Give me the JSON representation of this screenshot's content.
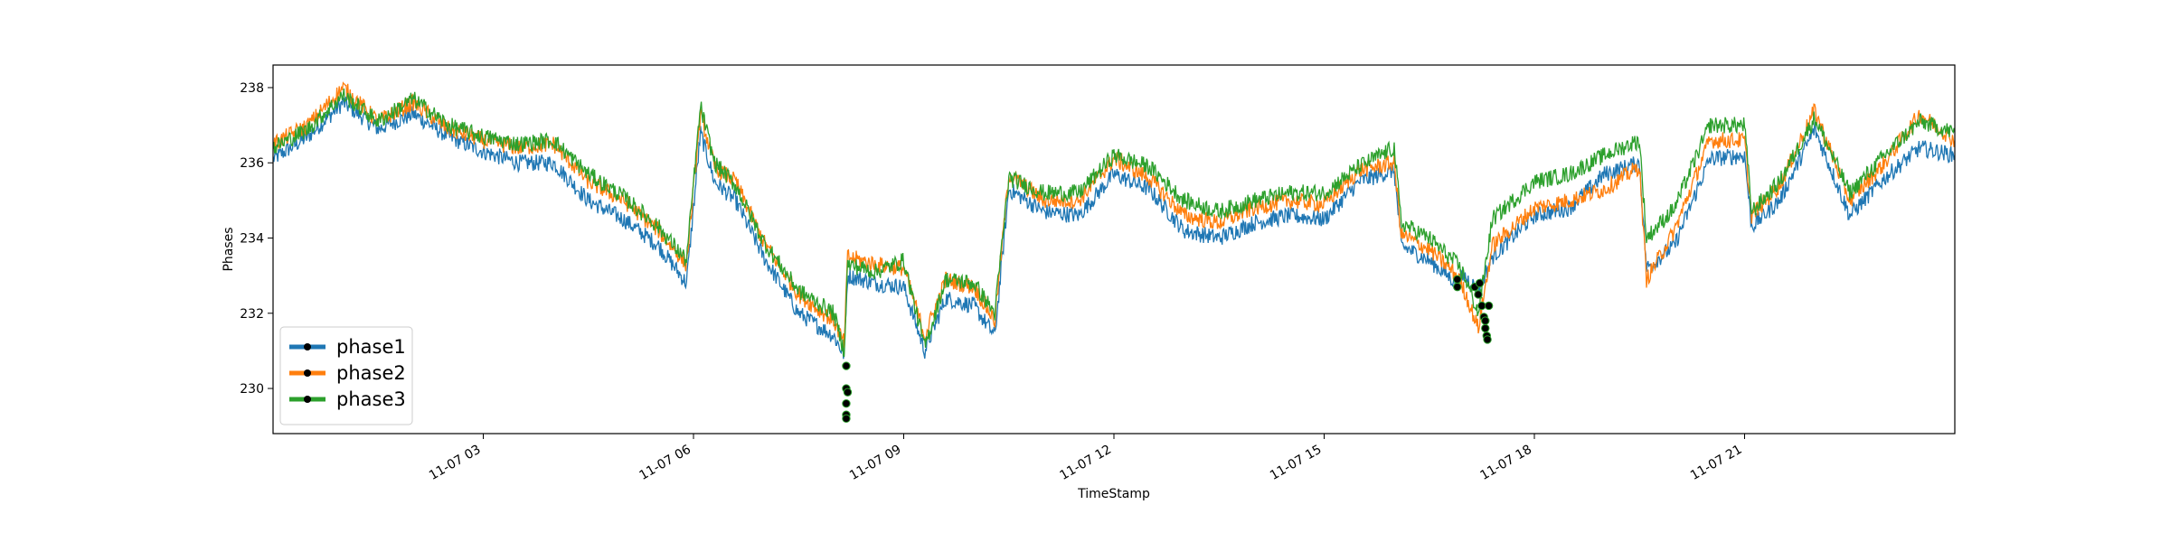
{
  "chart_data": {
    "type": "line",
    "title": "",
    "xlabel": "TimeStamp",
    "ylabel": "Phases",
    "x_unit": "hour of 11-07",
    "xlim": [
      0,
      24
    ],
    "ylim": [
      228.8,
      238.6
    ],
    "x_ticks": [
      {
        "x": 3,
        "label": "11-07 03"
      },
      {
        "x": 6,
        "label": "11-07 06"
      },
      {
        "x": 9,
        "label": "11-07 09"
      },
      {
        "x": 12,
        "label": "11-07 12"
      },
      {
        "x": 15,
        "label": "11-07 15"
      },
      {
        "x": 18,
        "label": "11-07 18"
      },
      {
        "x": 21,
        "label": "11-07 21"
      }
    ],
    "y_ticks": [
      {
        "y": 230,
        "label": "230"
      },
      {
        "y": 232,
        "label": "232"
      },
      {
        "y": 234,
        "label": "234"
      },
      {
        "y": 236,
        "label": "236"
      },
      {
        "y": 238,
        "label": "238"
      }
    ],
    "grid": false,
    "legend_position": "lower-left",
    "series": [
      {
        "name": "phase1",
        "color": "#1f77b4",
        "x": [
          0.0,
          0.5,
          1.0,
          1.5,
          2.0,
          2.5,
          3.0,
          3.5,
          4.0,
          4.5,
          5.0,
          5.5,
          5.9,
          6.1,
          6.3,
          6.6,
          7.0,
          7.5,
          8.0,
          8.15,
          8.2,
          8.6,
          9.0,
          9.3,
          9.6,
          10.0,
          10.3,
          10.5,
          11.0,
          11.5,
          12.0,
          12.5,
          13.0,
          13.5,
          14.0,
          14.5,
          15.0,
          15.5,
          16.0,
          16.1,
          16.5,
          16.9,
          17.0,
          17.2,
          17.4,
          18.0,
          18.5,
          19.0,
          19.5,
          19.6,
          20.0,
          20.5,
          21.0,
          21.1,
          21.5,
          22.0,
          22.5,
          23.0,
          23.5,
          24.0
        ],
        "y": [
          236.1,
          236.7,
          237.6,
          236.9,
          237.3,
          236.7,
          236.3,
          236.0,
          236.0,
          235.0,
          234.5,
          233.8,
          232.8,
          236.8,
          235.5,
          235.0,
          233.5,
          232.0,
          231.4,
          230.9,
          233.0,
          232.8,
          232.7,
          231.0,
          232.4,
          232.2,
          231.4,
          235.3,
          234.7,
          234.6,
          235.7,
          235.3,
          234.2,
          234.0,
          234.4,
          234.6,
          234.5,
          235.5,
          235.8,
          233.8,
          233.4,
          232.8,
          233.0,
          232.6,
          233.5,
          234.6,
          234.8,
          235.7,
          236.0,
          233.2,
          233.8,
          236.1,
          236.2,
          234.3,
          235.0,
          236.9,
          234.6,
          235.6,
          236.4,
          236.2
        ]
      },
      {
        "name": "phase2",
        "color": "#ff7f0e",
        "x": [
          0.0,
          0.5,
          1.0,
          1.5,
          2.0,
          2.5,
          3.0,
          3.5,
          4.0,
          4.5,
          5.0,
          5.5,
          5.9,
          6.1,
          6.3,
          6.6,
          7.0,
          7.5,
          8.0,
          8.15,
          8.2,
          8.6,
          9.0,
          9.3,
          9.6,
          10.0,
          10.3,
          10.5,
          11.0,
          11.5,
          12.0,
          12.5,
          13.0,
          13.5,
          14.0,
          14.5,
          15.0,
          15.5,
          16.0,
          16.1,
          16.5,
          16.9,
          17.0,
          17.2,
          17.4,
          18.0,
          18.5,
          19.0,
          19.5,
          19.6,
          20.0,
          20.5,
          21.0,
          21.1,
          21.5,
          22.0,
          22.5,
          23.0,
          23.5,
          24.0
        ],
        "y": [
          236.5,
          237.0,
          238.0,
          237.1,
          237.6,
          236.9,
          236.6,
          236.4,
          236.5,
          235.5,
          235.0,
          234.2,
          233.3,
          237.3,
          235.9,
          235.5,
          233.9,
          232.5,
          231.8,
          231.2,
          233.5,
          233.3,
          233.2,
          231.4,
          232.9,
          232.7,
          231.8,
          235.7,
          235.0,
          235.0,
          236.1,
          235.6,
          234.6,
          234.4,
          234.8,
          235.0,
          234.9,
          235.8,
          236.0,
          234.1,
          233.7,
          233.0,
          232.6,
          231.6,
          233.8,
          234.8,
          235.0,
          235.3,
          235.9,
          232.9,
          234.2,
          236.6,
          236.6,
          234.6,
          235.4,
          237.4,
          235.0,
          236.0,
          237.3,
          236.6
        ]
      },
      {
        "name": "phase3",
        "color": "#2ca02c",
        "x": [
          0.0,
          0.5,
          1.0,
          1.5,
          2.0,
          2.5,
          3.0,
          3.5,
          4.0,
          4.5,
          5.0,
          5.5,
          5.9,
          6.1,
          6.3,
          6.6,
          7.0,
          7.5,
          8.0,
          8.15,
          8.2,
          8.6,
          9.0,
          9.3,
          9.6,
          10.0,
          10.3,
          10.5,
          11.0,
          11.5,
          12.0,
          12.5,
          13.0,
          13.5,
          14.0,
          14.5,
          15.0,
          15.5,
          16.0,
          16.1,
          16.5,
          16.9,
          17.0,
          17.2,
          17.4,
          18.0,
          18.5,
          19.0,
          19.5,
          19.6,
          20.0,
          20.5,
          21.0,
          21.1,
          21.5,
          22.0,
          22.5,
          23.0,
          23.5,
          24.0
        ],
        "y": [
          236.4,
          236.9,
          237.8,
          237.1,
          237.7,
          237.0,
          236.7,
          236.5,
          236.6,
          235.7,
          235.1,
          234.3,
          233.4,
          237.5,
          236.0,
          235.4,
          233.9,
          232.6,
          232.0,
          231.0,
          233.3,
          233.1,
          233.4,
          231.1,
          232.9,
          232.8,
          232.0,
          235.6,
          235.2,
          235.2,
          236.2,
          235.9,
          235.0,
          234.7,
          235.0,
          235.2,
          235.2,
          235.9,
          236.4,
          234.4,
          234.0,
          233.3,
          233.0,
          232.0,
          234.5,
          235.5,
          235.7,
          236.2,
          236.6,
          234.0,
          234.8,
          237.0,
          237.0,
          234.7,
          235.5,
          237.2,
          235.2,
          236.2,
          237.1,
          236.8
        ]
      }
    ],
    "markers": [
      {
        "x": 8.18,
        "y": 230.6
      },
      {
        "x": 8.18,
        "y": 230.0
      },
      {
        "x": 8.18,
        "y": 229.6
      },
      {
        "x": 8.18,
        "y": 229.3
      },
      {
        "x": 8.18,
        "y": 229.2
      },
      {
        "x": 8.2,
        "y": 229.9
      },
      {
        "x": 16.9,
        "y": 232.9
      },
      {
        "x": 16.9,
        "y": 232.7
      },
      {
        "x": 17.15,
        "y": 232.7
      },
      {
        "x": 17.2,
        "y": 232.5
      },
      {
        "x": 17.25,
        "y": 232.2
      },
      {
        "x": 17.28,
        "y": 231.9
      },
      {
        "x": 17.3,
        "y": 231.6
      },
      {
        "x": 17.32,
        "y": 231.4
      },
      {
        "x": 17.33,
        "y": 231.3
      },
      {
        "x": 17.22,
        "y": 232.8
      },
      {
        "x": 17.35,
        "y": 232.2
      },
      {
        "x": 17.3,
        "y": 231.8
      }
    ]
  }
}
